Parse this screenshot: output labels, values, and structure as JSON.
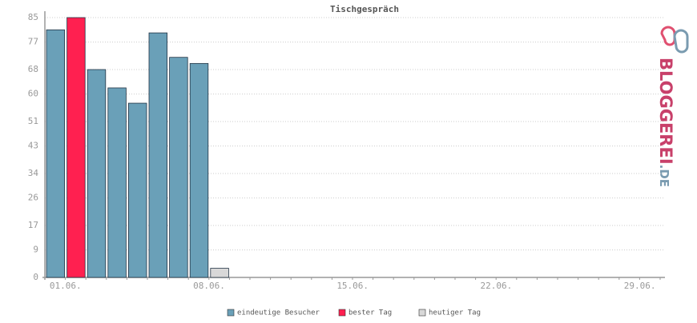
{
  "chart_data": {
    "type": "bar",
    "title": "Tischgespräch",
    "categories": [
      "01.06.",
      null,
      null,
      null,
      null,
      null,
      null,
      "08.06.",
      null,
      null,
      null,
      null,
      null,
      null,
      "15.06.",
      null,
      null,
      null,
      null,
      null,
      null,
      "22.06.",
      null,
      null,
      null,
      null,
      null,
      null,
      "29.06.",
      null
    ],
    "series": [
      {
        "name": "eindeutige Besucher",
        "color": "#6aa0b8",
        "values": [
          81,
          null,
          68,
          62,
          57,
          80,
          72,
          70,
          null,
          null,
          null,
          null,
          null,
          null,
          null,
          null,
          null,
          null,
          null,
          null,
          null,
          null,
          null,
          null,
          null,
          null,
          null,
          null,
          null,
          null
        ]
      },
      {
        "name": "bester Tag",
        "color": "#ff2050",
        "values": [
          null,
          85,
          null,
          null,
          null,
          null,
          null,
          null,
          null,
          null,
          null,
          null,
          null,
          null,
          null,
          null,
          null,
          null,
          null,
          null,
          null,
          null,
          null,
          null,
          null,
          null,
          null,
          null,
          null,
          null
        ]
      },
      {
        "name": "heutiger Tag",
        "color": "#d8d8d8",
        "values": [
          null,
          null,
          null,
          null,
          null,
          null,
          null,
          null,
          3,
          null,
          null,
          null,
          null,
          null,
          null,
          null,
          null,
          null,
          null,
          null,
          null,
          null,
          null,
          null,
          null,
          null,
          null,
          null,
          null,
          null
        ]
      }
    ],
    "ylim": [
      0,
      85
    ],
    "yticks": [
      0,
      9,
      17,
      26,
      34,
      43,
      51,
      60,
      68,
      77,
      85
    ],
    "grid": true,
    "logo": [
      "BLOGGEREI",
      ".DE"
    ]
  }
}
